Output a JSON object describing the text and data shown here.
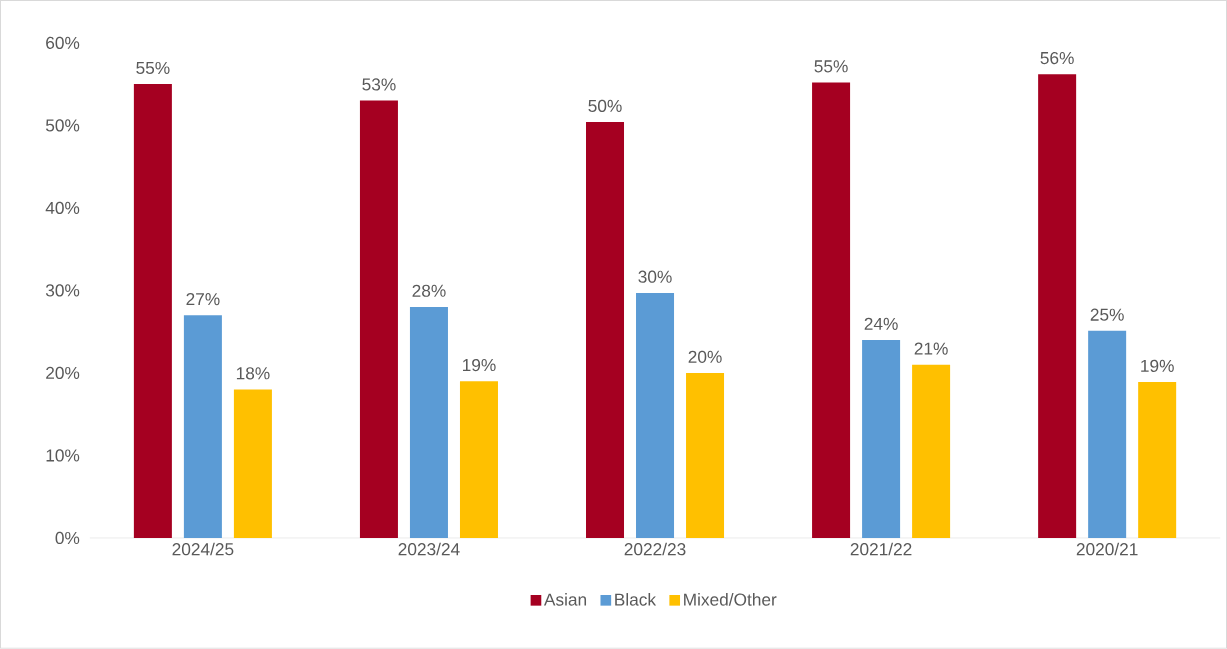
{
  "chart_data": {
    "type": "bar",
    "categories": [
      "2024/25",
      "2023/24",
      "2022/23",
      "2021/22",
      "2020/21"
    ],
    "series": [
      {
        "name": "Asian",
        "color": "#a50021",
        "values": [
          55,
          53,
          50.4,
          55.2,
          56.2
        ],
        "value_labels": [
          "55%",
          "53%",
          "50%",
          "55%",
          "56%"
        ]
      },
      {
        "name": "Black",
        "color": "#5b9bd5",
        "values": [
          27,
          28,
          29.7,
          24,
          25.1
        ],
        "value_labels": [
          "27%",
          "28%",
          "30%",
          "24%",
          "25%"
        ]
      },
      {
        "name": "Mixed/Other",
        "color": "#ffc000",
        "values": [
          18,
          19,
          20,
          21,
          18.9
        ],
        "value_labels": [
          "18%",
          "19%",
          "20%",
          "21%",
          "19%"
        ]
      }
    ],
    "ylim": [
      0,
      60
    ],
    "yticks": [
      {
        "value": 0,
        "label": "0%"
      },
      {
        "value": 10,
        "label": "10%"
      },
      {
        "value": 20,
        "label": "20%"
      },
      {
        "value": 30,
        "label": "30%"
      },
      {
        "value": 40,
        "label": "40%"
      },
      {
        "value": 50,
        "label": "50%"
      },
      {
        "value": 60,
        "label": "60%"
      }
    ],
    "legend": "bottom"
  }
}
